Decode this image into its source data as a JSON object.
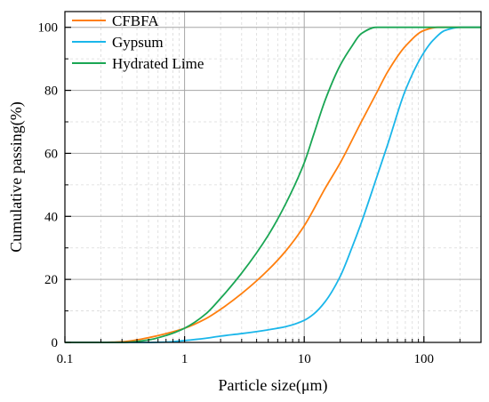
{
  "chart_data": {
    "type": "line",
    "title": "",
    "xlabel": "Particle size(μm)",
    "ylabel": "Cumulative passing(%)",
    "x_scale": "log",
    "xlim": [
      0.1,
      300
    ],
    "ylim": [
      0,
      105
    ],
    "x_ticks": [
      0.1,
      1,
      10,
      100
    ],
    "x_tick_labels": [
      "0.1",
      "1",
      "10",
      "100"
    ],
    "y_ticks": [
      0,
      20,
      40,
      60,
      80,
      100
    ],
    "y_tick_labels": [
      "0",
      "20",
      "40",
      "60",
      "80",
      "100"
    ],
    "grid": true,
    "legend_position": "top-left",
    "series": [
      {
        "name": "CFBFA",
        "color": "#ff7f0e",
        "x": [
          0.1,
          0.2,
          0.3,
          0.4,
          0.5,
          0.7,
          1,
          1.5,
          2,
          3,
          5,
          7,
          10,
          15,
          20,
          30,
          40,
          50,
          70,
          100,
          130,
          150,
          200,
          300
        ],
        "y": [
          0,
          0,
          0.2,
          0.8,
          1.5,
          2.8,
          4.5,
          7.5,
          10.5,
          15.5,
          23,
          29,
          37,
          49,
          57,
          70,
          79,
          86,
          94,
          99,
          100,
          100,
          100,
          100
        ]
      },
      {
        "name": "Gypsum",
        "color": "#1ab6ea",
        "x": [
          0.1,
          0.5,
          0.7,
          1,
          1.5,
          2,
          3,
          5,
          7,
          10,
          12,
          15,
          20,
          25,
          30,
          40,
          50,
          70,
          100,
          120,
          150,
          200,
          300
        ],
        "y": [
          0,
          0,
          0.1,
          0.6,
          1.3,
          2,
          2.8,
          4,
          5,
          7,
          9,
          13,
          21,
          30,
          38,
          52,
          63,
          80,
          92,
          96,
          99,
          100,
          100
        ]
      },
      {
        "name": "Hydrated Lime",
        "color": "#1aa654",
        "x": [
          0.1,
          0.3,
          0.5,
          0.7,
          1,
          1.5,
          2,
          3,
          5,
          7,
          10,
          12,
          15,
          20,
          25,
          30,
          40,
          50,
          70,
          100,
          300
        ],
        "y": [
          0,
          0,
          0.8,
          2.2,
          4.5,
          9,
          14,
          22,
          34,
          44,
          57,
          66,
          77,
          88,
          94,
          98,
          100,
          100,
          100,
          100,
          100
        ]
      }
    ]
  }
}
